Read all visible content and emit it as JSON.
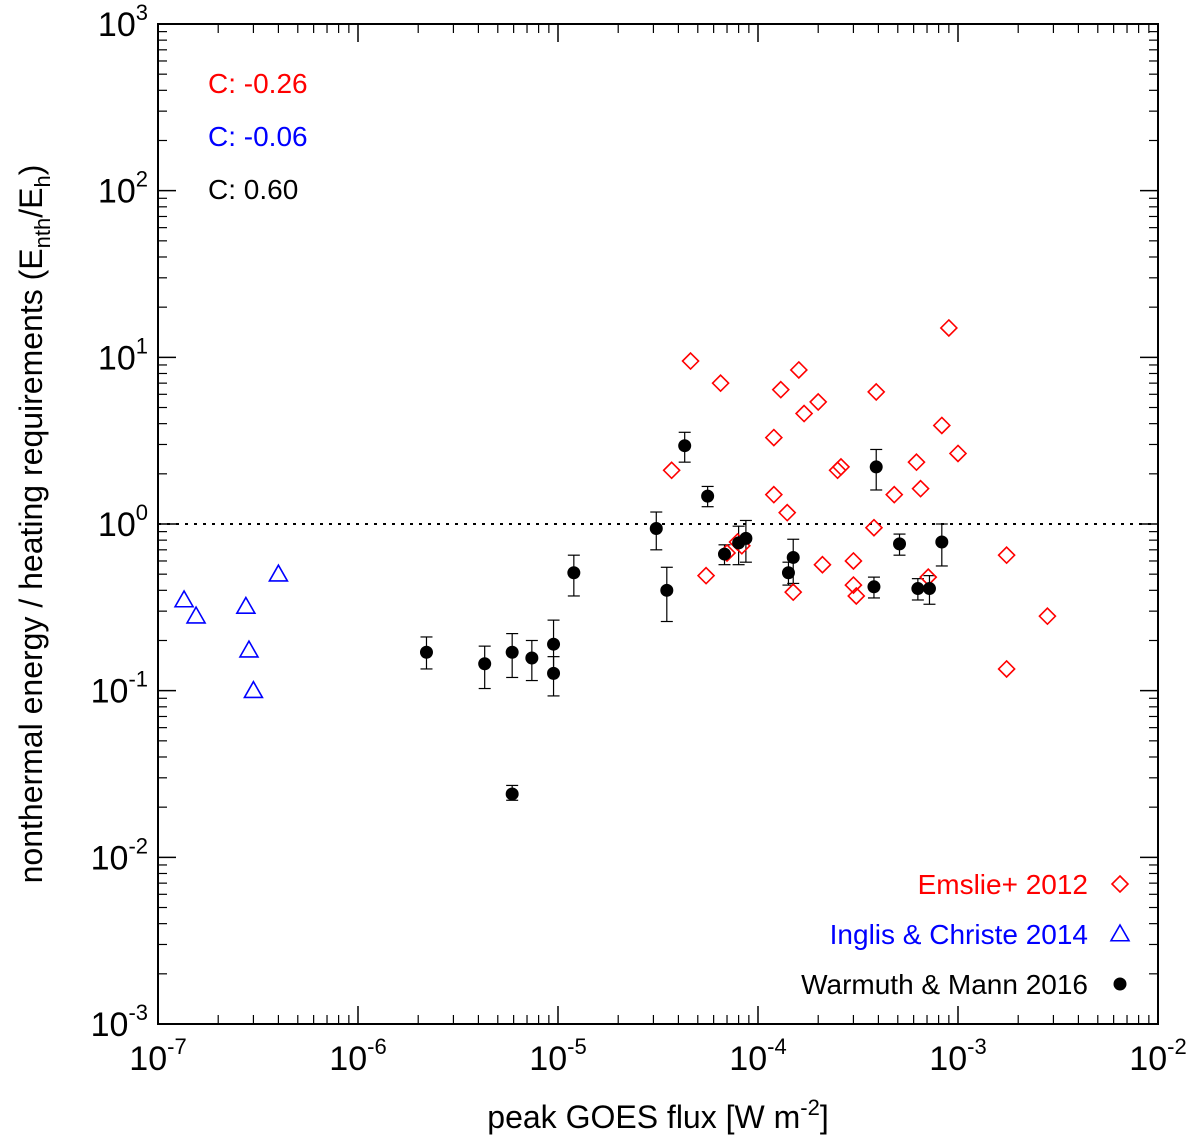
{
  "chart_data": {
    "type": "scatter",
    "xscale": "log",
    "yscale": "log",
    "xlim": [
      1e-07,
      0.01
    ],
    "ylim": [
      0.001,
      1000.0
    ],
    "xlabel": "peak GOES flux [W m",
    "xlabel_sup": "-2",
    "xlabel_end": "]",
    "ylabel": "nonthermal energy / heating requirements (E",
    "ylabel_sub1": "nth",
    "ylabel_mid": "/E",
    "ylabel_sub2": "h",
    "ylabel_end": ")",
    "x_ticks": [
      {
        "value": 1e-07,
        "base": "10",
        "exp": "-7"
      },
      {
        "value": 1e-06,
        "base": "10",
        "exp": "-6"
      },
      {
        "value": 1e-05,
        "base": "10",
        "exp": "-5"
      },
      {
        "value": 0.0001,
        "base": "10",
        "exp": "-4"
      },
      {
        "value": 0.001,
        "base": "10",
        "exp": "-3"
      },
      {
        "value": 0.01,
        "base": "10",
        "exp": "-2"
      }
    ],
    "y_ticks": [
      {
        "value": 0.001,
        "base": "10",
        "exp": "-3"
      },
      {
        "value": 0.01,
        "base": "10",
        "exp": "-2"
      },
      {
        "value": 0.1,
        "base": "10",
        "exp": "-1"
      },
      {
        "value": 1.0,
        "base": "10",
        "exp": "0"
      },
      {
        "value": 10.0,
        "base": "10",
        "exp": "1"
      },
      {
        "value": 100.0,
        "base": "10",
        "exp": "2"
      },
      {
        "value": 1000.0,
        "base": "10",
        "exp": "3"
      }
    ],
    "reference_line": {
      "y": 1.0,
      "style": "dotted"
    },
    "annotations": [
      {
        "text": "C: -0.26",
        "color": "#ff0000"
      },
      {
        "text": "C: -0.06",
        "color": "#0000ff"
      },
      {
        "text": "C: 0.60",
        "color": "#000000"
      }
    ],
    "series": [
      {
        "name": "Emslie+ 2012",
        "marker": "diamond-open",
        "color": "#ff0000",
        "points": [
          {
            "x": 4.6e-05,
            "y": 9.5
          },
          {
            "x": 6.5e-05,
            "y": 7.0
          },
          {
            "x": 3.7e-05,
            "y": 2.1
          },
          {
            "x": 5.5e-05,
            "y": 0.49
          },
          {
            "x": 7e-05,
            "y": 0.67
          },
          {
            "x": 7.9e-05,
            "y": 0.78
          },
          {
            "x": 8.3e-05,
            "y": 0.74
          },
          {
            "x": 0.00012,
            "y": 3.3
          },
          {
            "x": 0.00013,
            "y": 6.4
          },
          {
            "x": 0.00012,
            "y": 1.5
          },
          {
            "x": 0.00014,
            "y": 1.17
          },
          {
            "x": 0.00015,
            "y": 0.39
          },
          {
            "x": 0.00016,
            "y": 8.4
          },
          {
            "x": 0.00017,
            "y": 4.6
          },
          {
            "x": 0.0002,
            "y": 5.4
          },
          {
            "x": 0.00021,
            "y": 0.57
          },
          {
            "x": 0.00025,
            "y": 2.1
          },
          {
            "x": 0.00026,
            "y": 2.2
          },
          {
            "x": 0.0003,
            "y": 0.6
          },
          {
            "x": 0.0003,
            "y": 0.43
          },
          {
            "x": 0.00031,
            "y": 0.37
          },
          {
            "x": 0.00038,
            "y": 0.95
          },
          {
            "x": 0.00039,
            "y": 6.2
          },
          {
            "x": 0.00048,
            "y": 1.5
          },
          {
            "x": 0.00062,
            "y": 2.35
          },
          {
            "x": 0.00065,
            "y": 1.63
          },
          {
            "x": 0.00071,
            "y": 0.48
          },
          {
            "x": 0.00083,
            "y": 3.9
          },
          {
            "x": 0.0009,
            "y": 15.0
          },
          {
            "x": 0.001,
            "y": 2.65
          },
          {
            "x": 0.00175,
            "y": 0.65
          },
          {
            "x": 0.00175,
            "y": 0.135
          },
          {
            "x": 0.0028,
            "y": 0.28
          }
        ]
      },
      {
        "name": "Inglis & Christe 2014",
        "marker": "triangle-open",
        "color": "#0000ff",
        "points": [
          {
            "x": 1.35e-07,
            "y": 0.35
          },
          {
            "x": 1.55e-07,
            "y": 0.28
          },
          {
            "x": 2.75e-07,
            "y": 0.32
          },
          {
            "x": 2.85e-07,
            "y": 0.175
          },
          {
            "x": 3e-07,
            "y": 0.1
          },
          {
            "x": 4e-07,
            "y": 0.5
          }
        ]
      },
      {
        "name": "Warmuth & Mann 2016",
        "marker": "circle-filled",
        "color": "#000000",
        "points": [
          {
            "x": 2.2e-06,
            "y": 0.17,
            "ylo": 0.135,
            "yhi": 0.21
          },
          {
            "x": 4.3e-06,
            "y": 0.145,
            "ylo": 0.103,
            "yhi": 0.185
          },
          {
            "x": 5.9e-06,
            "y": 0.17,
            "ylo": 0.12,
            "yhi": 0.22
          },
          {
            "x": 5.9e-06,
            "y": 0.024,
            "ylo": 0.022,
            "yhi": 0.027
          },
          {
            "x": 7.4e-06,
            "y": 0.157,
            "ylo": 0.115,
            "yhi": 0.2
          },
          {
            "x": 9.5e-06,
            "y": 0.19,
            "ylo": 0.125,
            "yhi": 0.265
          },
          {
            "x": 9.5e-06,
            "y": 0.127,
            "ylo": 0.093,
            "yhi": 0.16
          },
          {
            "x": 1.2e-05,
            "y": 0.51,
            "ylo": 0.37,
            "yhi": 0.65
          },
          {
            "x": 3.1e-05,
            "y": 0.94,
            "ylo": 0.7,
            "yhi": 1.18
          },
          {
            "x": 3.5e-05,
            "y": 0.4,
            "ylo": 0.26,
            "yhi": 0.55
          },
          {
            "x": 4.3e-05,
            "y": 2.95,
            "ylo": 2.35,
            "yhi": 3.55
          },
          {
            "x": 5.6e-05,
            "y": 1.47,
            "ylo": 1.27,
            "yhi": 1.68
          },
          {
            "x": 6.8e-05,
            "y": 0.66,
            "ylo": 0.57,
            "yhi": 0.75
          },
          {
            "x": 8e-05,
            "y": 0.77,
            "ylo": 0.57,
            "yhi": 0.97
          },
          {
            "x": 8.7e-05,
            "y": 0.82,
            "ylo": 0.59,
            "yhi": 1.05
          },
          {
            "x": 0.000142,
            "y": 0.51,
            "ylo": 0.43,
            "yhi": 0.59
          },
          {
            "x": 0.00015,
            "y": 0.63,
            "ylo": 0.44,
            "yhi": 0.81
          },
          {
            "x": 0.00038,
            "y": 0.42,
            "ylo": 0.36,
            "yhi": 0.48
          },
          {
            "x": 0.00039,
            "y": 2.2,
            "ylo": 1.6,
            "yhi": 2.8
          },
          {
            "x": 0.00051,
            "y": 0.76,
            "ylo": 0.65,
            "yhi": 0.87
          },
          {
            "x": 0.00063,
            "y": 0.41,
            "ylo": 0.35,
            "yhi": 0.47
          },
          {
            "x": 0.00072,
            "y": 0.41,
            "ylo": 0.33,
            "yhi": 0.49
          },
          {
            "x": 0.00083,
            "y": 0.78,
            "ylo": 0.56,
            "yhi": 1.0
          }
        ]
      }
    ],
    "legend_position": "bottom-right"
  }
}
